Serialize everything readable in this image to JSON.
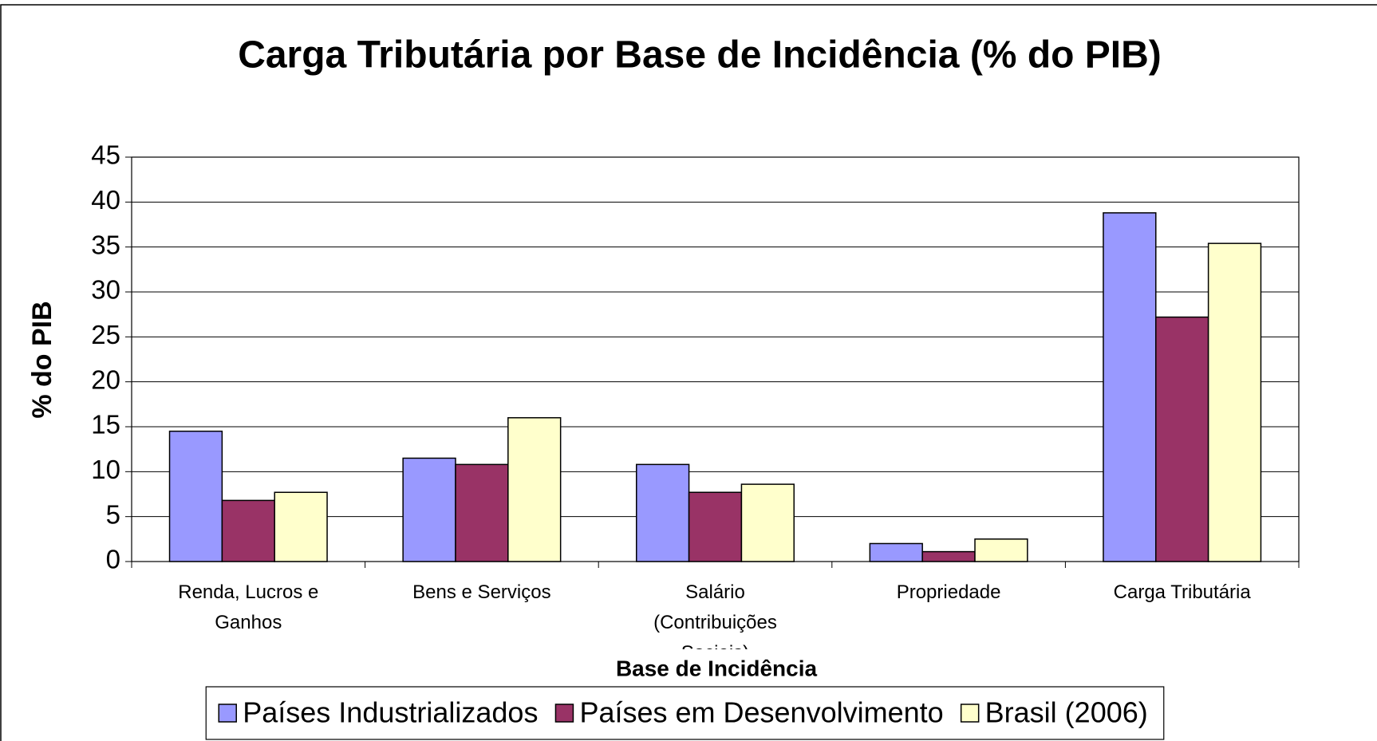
{
  "chart_data": {
    "type": "bar",
    "title": "Carga Tributária por Base de Incidência (% do PIB)",
    "xlabel": "Base de Incidência",
    "ylabel": "% do PIB",
    "categories": [
      "Renda, Lucros e Ganhos",
      "Bens e Serviços",
      "Salário (Contribuições Sociais)",
      "Propriedade",
      "Carga Tributária"
    ],
    "series": [
      {
        "name": "Países Industrializados",
        "color": "#9999ff",
        "values": [
          14.5,
          11.5,
          10.8,
          2.0,
          38.8
        ]
      },
      {
        "name": "Países em Desenvolvimento",
        "color": "#993366",
        "values": [
          6.8,
          10.8,
          7.7,
          1.1,
          27.2
        ]
      },
      {
        "name": "Brasil (2006)",
        "color": "#ffffcc",
        "values": [
          7.7,
          16.0,
          8.6,
          2.5,
          35.4
        ]
      }
    ],
    "ylim": [
      0,
      45
    ],
    "yticks": [
      0,
      5,
      10,
      15,
      20,
      25,
      30,
      35,
      40,
      45
    ],
    "grid": true,
    "legend": "bottom"
  }
}
